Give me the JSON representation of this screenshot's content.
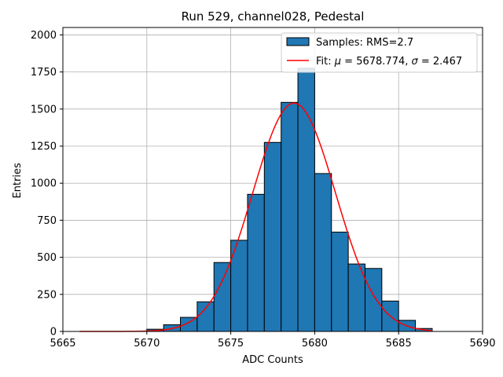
{
  "chart_data": {
    "type": "bar",
    "title": "Run 529, channel028, Pedestal",
    "xlabel": "ADC Counts",
    "ylabel": "Entries",
    "xlim": [
      5665,
      5690
    ],
    "ylim": [
      0,
      2050
    ],
    "xticks": [
      5665,
      5670,
      5675,
      5680,
      5685,
      5690
    ],
    "yticks": [
      0,
      250,
      500,
      750,
      1000,
      1250,
      1500,
      1750,
      2000
    ],
    "grid": true,
    "legend_position": "top-right",
    "colors": {
      "bars": "#1f77b4",
      "bar_edge": "#000000",
      "fit": "#ff0000"
    },
    "bins": [
      {
        "left": 5670,
        "right": 5671,
        "count": 15
      },
      {
        "left": 5671,
        "right": 5672,
        "count": 45
      },
      {
        "left": 5672,
        "right": 5673,
        "count": 95
      },
      {
        "left": 5673,
        "right": 5674,
        "count": 200
      },
      {
        "left": 5674,
        "right": 5675,
        "count": 465
      },
      {
        "left": 5675,
        "right": 5676,
        "count": 615
      },
      {
        "left": 5676,
        "right": 5677,
        "count": 925
      },
      {
        "left": 5677,
        "right": 5678,
        "count": 1275
      },
      {
        "left": 5678,
        "right": 5679,
        "count": 1545
      },
      {
        "left": 5679,
        "right": 5680,
        "count": 1775
      },
      {
        "left": 5680,
        "right": 5681,
        "count": 1065
      },
      {
        "left": 5681,
        "right": 5682,
        "count": 670
      },
      {
        "left": 5682,
        "right": 5683,
        "count": 455
      },
      {
        "left": 5683,
        "right": 5684,
        "count": 425
      },
      {
        "left": 5684,
        "right": 5685,
        "count": 205
      },
      {
        "left": 5685,
        "right": 5686,
        "count": 75
      },
      {
        "left": 5686,
        "right": 5687,
        "count": 20
      }
    ],
    "fit": {
      "type": "gaussian",
      "mu": 5678.774,
      "sigma": 2.467,
      "amplitude": 1540,
      "x_range": [
        5666,
        5687
      ]
    },
    "legend": {
      "samples_label": "Samples: RMS=2.7",
      "fit_prefix": "Fit: ",
      "fit_mu_symbol": "μ",
      "fit_mu_value": " = 5678.774, ",
      "fit_sigma_symbol": "σ",
      "fit_sigma_value": " = 2.467"
    }
  }
}
